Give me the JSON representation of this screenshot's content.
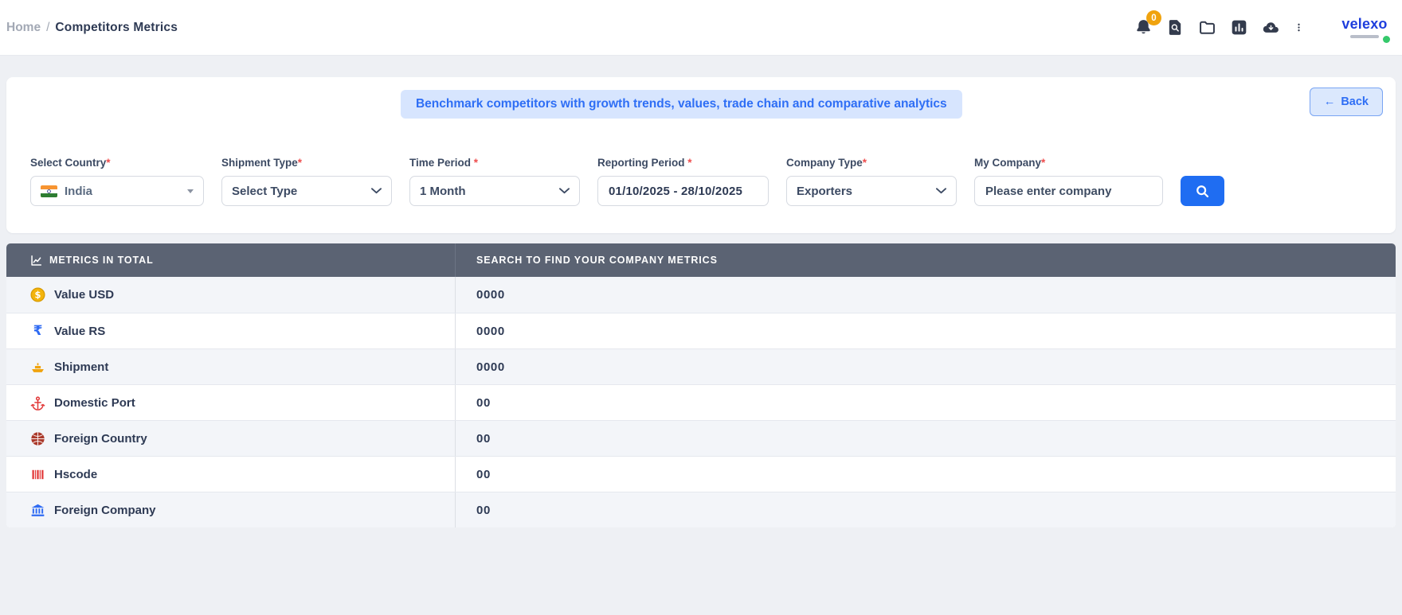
{
  "breadcrumb": {
    "home": "Home",
    "separator": "/",
    "current": "Competitors Metrics"
  },
  "header": {
    "notification_count": "0",
    "icons": [
      "bell-icon",
      "document-search-icon",
      "folder-icon",
      "bar-chart-icon",
      "cloud-download-icon",
      "kebab-menu-icon"
    ],
    "logo_text": "velexo"
  },
  "banner": {
    "text": "Benchmark competitors with growth trends, values, trade chain and comparative analytics"
  },
  "back_button": {
    "arrow": "←",
    "label": "Back"
  },
  "filters": {
    "country": {
      "label": "Select Country",
      "required": "*",
      "value": "India",
      "flag": "india-flag-icon"
    },
    "shipment_type": {
      "label": "Shipment Type",
      "required": "*",
      "value": "Select Type"
    },
    "time_period": {
      "label": "Time Period ",
      "required": "*",
      "value": "1 Month"
    },
    "reporting_period": {
      "label": "Reporting Period ",
      "required": "*",
      "value": "01/10/2025 - 28/10/2025"
    },
    "company_type": {
      "label": "Company Type",
      "required": "*",
      "value": "Exporters"
    },
    "my_company": {
      "label": "My Company",
      "required": "*",
      "placeholder": "Please enter company"
    }
  },
  "table": {
    "headers": [
      "METRICS IN TOTAL",
      "SEARCH TO FIND YOUR COMPANY METRICS"
    ],
    "header_icon": "line-chart-icon",
    "rows": [
      {
        "icon": "dollar-coin-icon",
        "label": "Value USD",
        "value": "0000"
      },
      {
        "icon": "rupee-icon",
        "label": "Value RS",
        "value": "0000"
      },
      {
        "icon": "ship-icon",
        "label": "Shipment",
        "value": "0000"
      },
      {
        "icon": "anchor-icon",
        "label": "Domestic Port",
        "value": "00"
      },
      {
        "icon": "globe-icon",
        "label": "Foreign Country",
        "value": "00"
      },
      {
        "icon": "barcode-icon",
        "label": "Hscode",
        "value": "00"
      },
      {
        "icon": "bank-icon",
        "label": "Foreign Company",
        "value": "00"
      }
    ]
  },
  "colors": {
    "accent_blue": "#2e6ef5",
    "search_button_blue": "#1f6df2",
    "banner_bg": "#d7e5fe",
    "table_header_slate": "#5b6373",
    "badge_orange": "#f0a30e",
    "required_red": "#ee4d4d",
    "logo_blue": "#1e3edd",
    "status_green": "#35c96b",
    "page_bg": "#eef0f4"
  }
}
